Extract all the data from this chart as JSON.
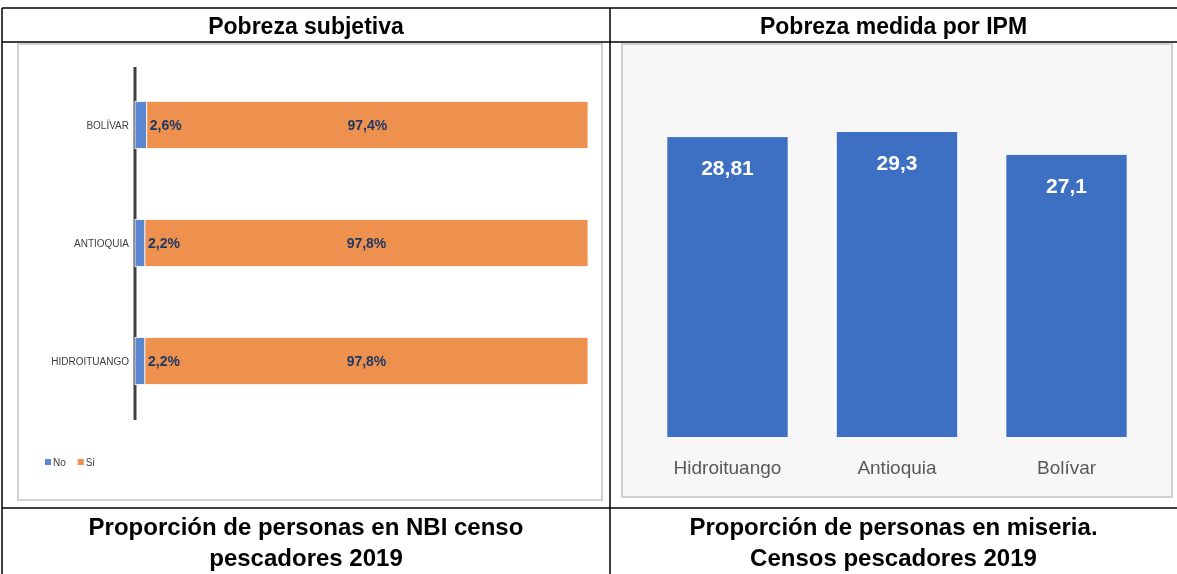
{
  "chart_data": [
    {
      "type": "bar",
      "title": "Pobreza subjetiva",
      "orientation": "horizontal",
      "stacked": true,
      "categories": [
        "BOLÍVAR",
        "ANTIOQUIA",
        "HIDROITUANGO"
      ],
      "legend": "bottom left",
      "annotations": [
        "Proporción de personas en NBI censo pescadores 2019"
      ],
      "series": [
        {
          "name": "No",
          "color": "#5b87d0",
          "values": [
            2.6,
            2.2,
            2.2
          ],
          "value_labels": [
            "2,6%",
            "2,2%",
            "2,2%"
          ]
        },
        {
          "name": "Si",
          "color": "#ee914f",
          "values": [
            97.4,
            97.8,
            97.8
          ],
          "value_labels": [
            "97,4%",
            "97,8%",
            "97,8%"
          ]
        }
      ]
    },
    {
      "type": "bar",
      "title": "Pobreza medida por IPM",
      "categories": [
        "Hidroituango",
        "Antioquia",
        "Bolívar"
      ],
      "values": [
        28.81,
        29.3,
        27.1
      ],
      "value_labels": [
        "28,81",
        "29,3",
        "27,1"
      ],
      "color": "#3d6fc2",
      "annotations": [
        "Proporción de personas en miseria. Censos pescadores 2019"
      ]
    }
  ]
}
